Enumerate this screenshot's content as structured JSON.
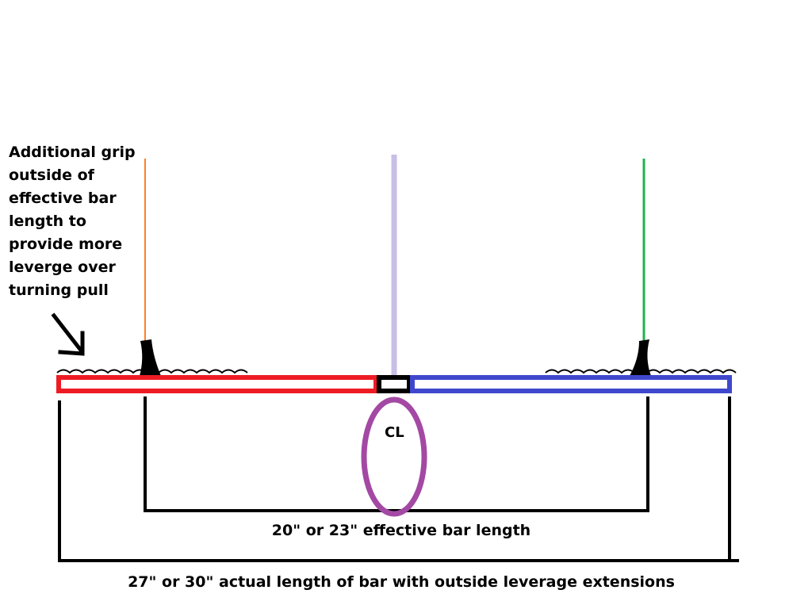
{
  "note": {
    "lines": [
      "Additional grip",
      "outside of",
      "effective bar",
      "length to",
      "provide more",
      "leverge over",
      "turning pull"
    ]
  },
  "labels": {
    "center": "CL",
    "effective": "20\" or 23\" effective bar length",
    "actual": "27\" or 30\" actual length of bar with outside leverage extensions"
  },
  "colors": {
    "left_bar": "#ed1c24",
    "right_bar": "#3f48cc",
    "center_line": "#c8bfe7",
    "left_pull": "#ff7f27",
    "right_pull": "#22b14c",
    "cl_ring": "#a349a4",
    "dimension": "#000000"
  }
}
